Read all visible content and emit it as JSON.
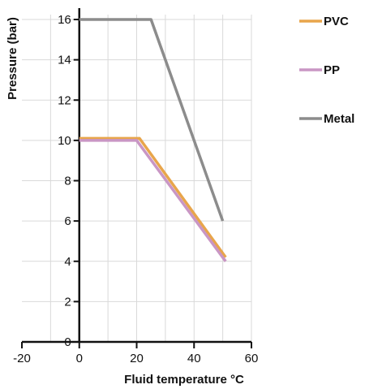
{
  "chart_data": {
    "type": "line",
    "xlabel": "Fluid temperature °C",
    "ylabel": "Pressure (bar)",
    "xlim": [
      -20,
      60
    ],
    "ylim": [
      0,
      16
    ],
    "xticks": [
      -20,
      0,
      20,
      40,
      60
    ],
    "yticks": [
      0,
      2,
      4,
      6,
      8,
      10,
      12,
      14,
      16
    ],
    "grid": true,
    "legend_position": "right",
    "series": [
      {
        "name": "PVC",
        "color": "#e8a54b",
        "points": [
          [
            0,
            10.1
          ],
          [
            21,
            10.1
          ],
          [
            51,
            4.2
          ]
        ]
      },
      {
        "name": "PP",
        "color": "#c996c4",
        "points": [
          [
            0,
            10.0
          ],
          [
            20,
            10.0
          ],
          [
            51,
            4.0
          ]
        ]
      },
      {
        "name": "Metal",
        "color": "#8c8c8c",
        "points": [
          [
            0,
            16.0
          ],
          [
            25,
            16.0
          ],
          [
            50,
            6.0
          ]
        ]
      }
    ]
  }
}
